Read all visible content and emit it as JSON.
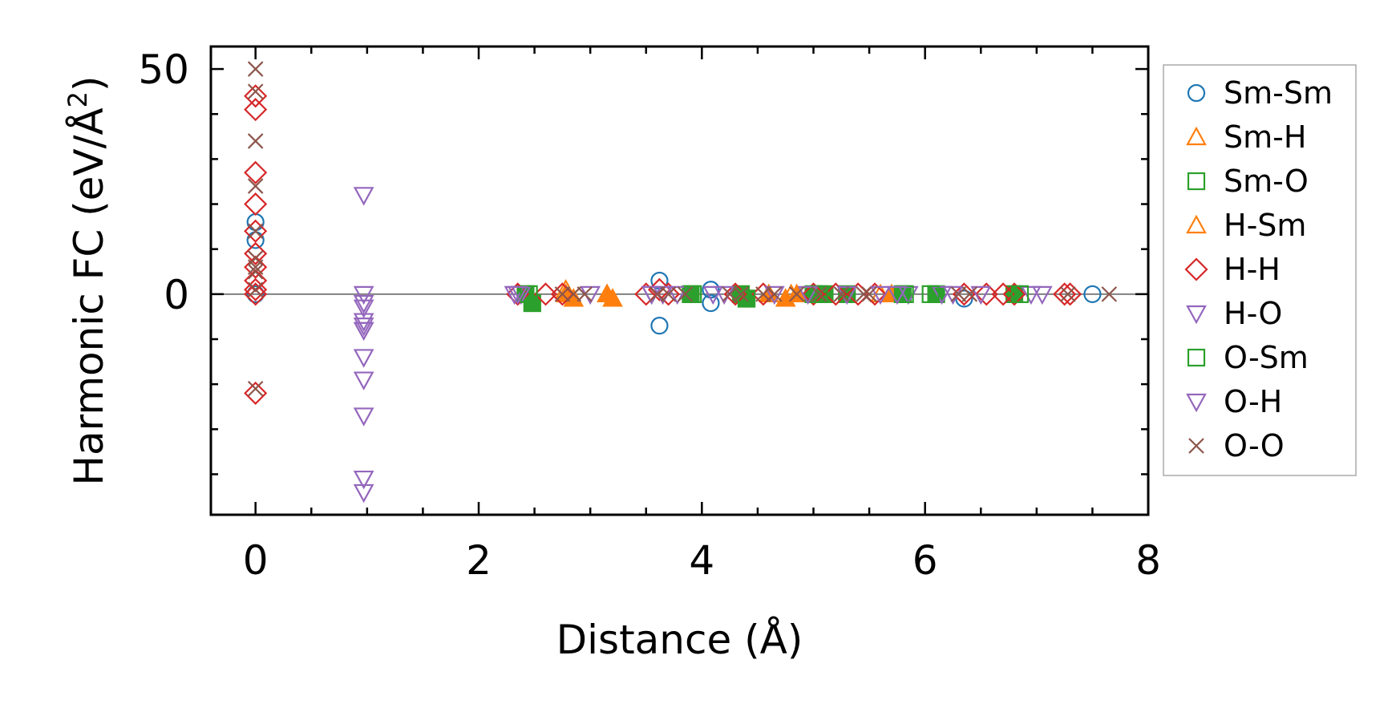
{
  "chart_data": {
    "type": "scatter",
    "xlabel": "Distance (Å)",
    "ylabel": "Harmonic FC (eV/Å",
    "ylabel_sup": "2",
    "ylabel_close": ")",
    "xlim": [
      -0.4,
      8.0
    ],
    "ylim": [
      -49,
      55
    ],
    "x_ticks": [
      0,
      2,
      4,
      6,
      8
    ],
    "x_tick_labels": [
      "0",
      "2",
      "4",
      "6",
      "8"
    ],
    "x_minor_step": 0.5,
    "y_ticks": [
      0,
      50
    ],
    "y_tick_labels": [
      "0",
      "50"
    ],
    "y_minor_step": 10,
    "zero_line": true,
    "legend_position": "right-outside",
    "series": [
      {
        "name": "Sm-Sm",
        "color": "#1f77b4",
        "marker": "circle",
        "filled": false,
        "x": [
          0,
          0,
          0,
          3.62,
          3.62,
          4.08,
          4.08,
          6.35,
          7.5
        ],
        "y": [
          16,
          12,
          0,
          3,
          -7,
          1,
          -2,
          -1,
          0
        ]
      },
      {
        "name": "Sm-H",
        "color": "#ff7f0e",
        "marker": "triangle-up",
        "filled": true,
        "x": [
          2.78,
          2.85,
          3.15,
          3.2,
          4.6,
          4.75,
          4.85,
          5.7
        ],
        "y": [
          0,
          -1,
          0,
          -1,
          0,
          -1,
          0,
          0
        ]
      },
      {
        "name": "Sm-O",
        "color": "#2ca02c",
        "marker": "square",
        "filled": true,
        "x": [
          2.42,
          2.48,
          3.9,
          4.35,
          4.4,
          5.0,
          5.1,
          5.3,
          5.8,
          6.1,
          6.8
        ],
        "y": [
          0,
          -2,
          0,
          0,
          -1,
          0,
          0,
          0,
          0,
          0,
          0
        ]
      },
      {
        "name": "H-Sm",
        "color": "#ff7f0e",
        "marker": "triangle-up",
        "filled": false,
        "x": [
          2.78,
          3.15,
          4.8,
          5.6
        ],
        "y": [
          1,
          0,
          0,
          0
        ]
      },
      {
        "name": "H-H",
        "color": "#d62728",
        "marker": "diamond",
        "filled": false,
        "x": [
          0,
          0,
          0,
          0,
          0,
          0,
          0,
          0,
          0,
          0,
          0,
          2.35,
          2.6,
          2.75,
          3.5,
          3.62,
          3.7,
          4.3,
          4.55,
          5.0,
          5.2,
          5.4,
          5.55,
          6.35,
          6.55,
          6.7,
          6.8,
          7.25,
          7.3
        ],
        "y": [
          44,
          41,
          27,
          20,
          14,
          9,
          6,
          3,
          1,
          0,
          -22,
          0,
          0,
          0,
          0,
          1,
          0,
          0,
          0,
          0,
          0,
          0,
          0,
          0,
          0,
          0,
          0,
          0,
          0
        ]
      },
      {
        "name": "H-O",
        "color": "#9467bd",
        "marker": "triangle-down",
        "filled": false,
        "x": [
          0.97,
          0.97,
          0.97,
          0.97,
          0.97,
          0.97,
          0.97,
          0.97,
          0.97,
          0.97,
          2.32,
          2.38,
          3.0,
          3.55,
          3.65,
          3.78,
          4.2,
          4.65,
          5.3,
          5.6,
          5.85,
          6.15,
          6.5,
          6.95
        ],
        "y": [
          22,
          0,
          -2,
          -6,
          -7,
          -8,
          -14,
          -19,
          -27,
          -41,
          0,
          0,
          0,
          0,
          0,
          0,
          0,
          0,
          0,
          0,
          0,
          0,
          0,
          0
        ]
      },
      {
        "name": "O-Sm",
        "color": "#2ca02c",
        "marker": "square",
        "filled": false,
        "x": [
          2.45,
          3.92,
          4.4,
          5.05,
          5.82,
          6.05,
          6.85
        ],
        "y": [
          0,
          0,
          -1,
          0,
          0,
          0,
          0
        ]
      },
      {
        "name": "O-H",
        "color": "#9467bd",
        "marker": "triangle-down",
        "filled": false,
        "x": [
          0.97,
          0.97,
          0.97,
          2.35,
          3.55,
          4.1,
          4.95,
          5.75,
          6.25,
          7.05
        ],
        "y": [
          -3,
          -8,
          -44,
          0,
          0,
          0,
          0,
          0,
          0,
          0
        ]
      },
      {
        "name": "O-O",
        "color": "#8c564b",
        "marker": "x",
        "filled": false,
        "x": [
          0,
          0,
          0,
          0,
          0,
          0,
          0,
          0,
          0,
          0,
          2.75,
          2.85,
          2.95,
          3.6,
          3.7,
          3.85,
          4.25,
          4.35,
          4.55,
          4.65,
          4.85,
          5.05,
          5.25,
          5.45,
          5.5,
          6.3,
          6.4,
          7.28,
          7.65
        ],
        "y": [
          50,
          45,
          34,
          24,
          14,
          8,
          6,
          5,
          1,
          -21,
          0,
          0,
          0,
          0,
          0,
          0,
          0,
          0,
          0,
          0,
          0,
          0,
          0,
          0,
          0,
          0,
          0,
          0,
          0
        ]
      }
    ]
  }
}
